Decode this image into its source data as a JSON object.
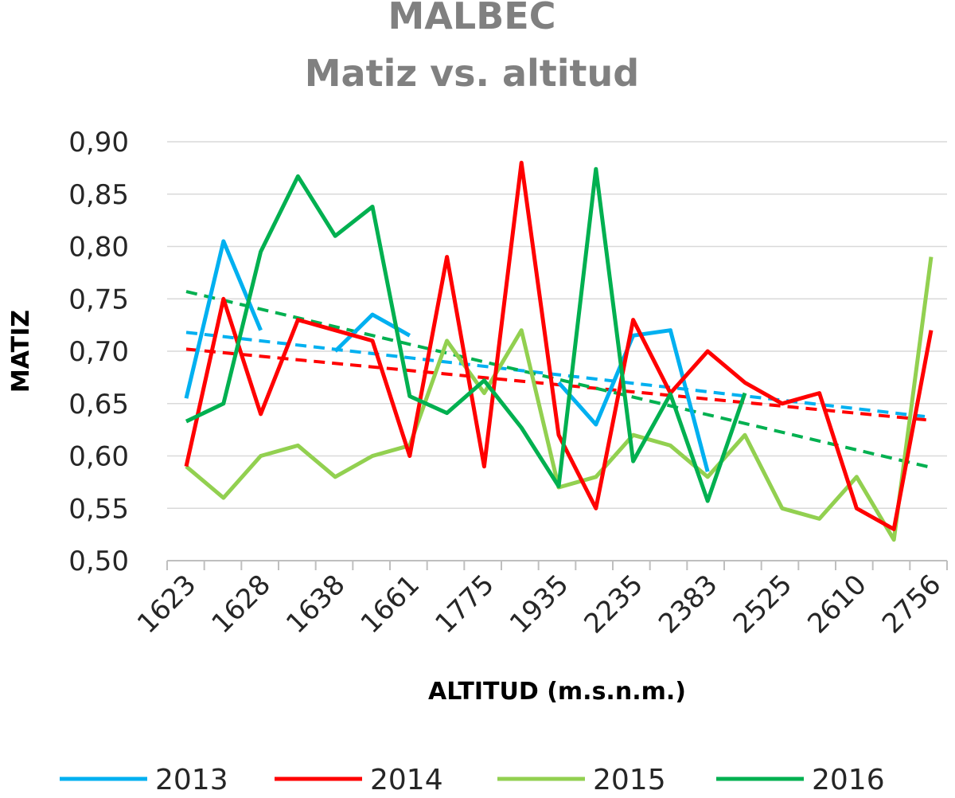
{
  "chart_data": {
    "type": "line",
    "title_line1": "MALBEC",
    "title_line2": "Matiz vs. altitud",
    "xlabel": "ALTITUD (m.s.n.m.)",
    "ylabel": "MATIZ",
    "ylim": [
      0.5,
      0.9
    ],
    "y_ticks": [
      "0,50",
      "0,55",
      "0,60",
      "0,65",
      "0,70",
      "0,75",
      "0,80",
      "0,85",
      "0,90"
    ],
    "y_tick_values": [
      0.5,
      0.55,
      0.6,
      0.65,
      0.7,
      0.75,
      0.8,
      0.85,
      0.9
    ],
    "x_tick_labels": [
      "1623",
      "1628",
      "1638",
      "1661",
      "1775",
      "1935",
      "2235",
      "2383",
      "2525",
      "2610",
      "2756"
    ],
    "n_points": 21,
    "series": [
      {
        "name": "2013",
        "color": "#00b0f0",
        "values": [
          0.655,
          0.805,
          0.72,
          null,
          0.7,
          0.735,
          0.715,
          null,
          null,
          null,
          0.67,
          0.63,
          0.715,
          0.72,
          0.585,
          null,
          null,
          null,
          null,
          null,
          null
        ],
        "trend": [
          0.718,
          0.637
        ]
      },
      {
        "name": "2014",
        "color": "#ff0000",
        "values": [
          0.59,
          0.75,
          0.64,
          0.73,
          0.72,
          0.71,
          0.6,
          0.79,
          0.59,
          0.88,
          0.62,
          0.55,
          0.73,
          0.66,
          0.7,
          0.67,
          0.65,
          0.66,
          0.55,
          0.53,
          0.72
        ],
        "trend": [
          0.702,
          0.634
        ]
      },
      {
        "name": "2015",
        "color": "#92d050",
        "values": [
          0.59,
          0.56,
          0.6,
          0.61,
          0.58,
          0.6,
          0.61,
          0.71,
          0.66,
          0.72,
          0.57,
          0.58,
          0.62,
          0.61,
          0.58,
          0.62,
          0.55,
          0.54,
          0.58,
          0.52,
          0.79
        ],
        "trend": null
      },
      {
        "name": "2016",
        "color": "#00b050",
        "values": [
          0.633,
          0.65,
          0.795,
          0.867,
          0.81,
          0.838,
          0.657,
          0.641,
          0.672,
          0.627,
          0.571,
          0.874,
          0.595,
          0.659,
          0.557,
          0.66,
          null,
          null,
          null,
          null,
          null
        ],
        "trend": [
          0.757,
          0.589
        ]
      }
    ],
    "legend_position": "bottom"
  }
}
